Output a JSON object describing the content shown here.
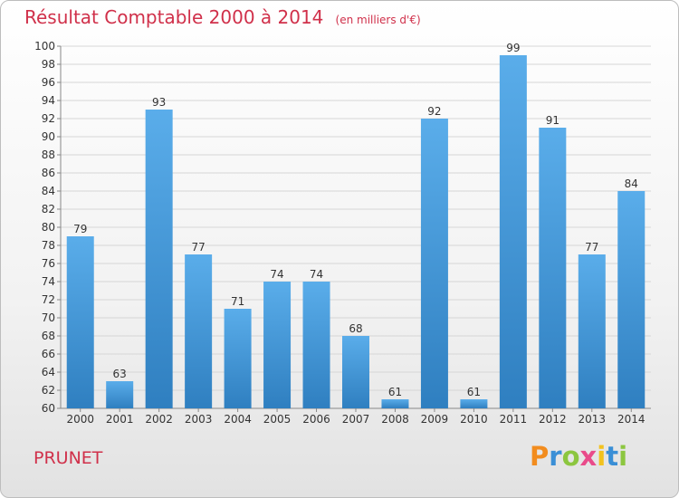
{
  "chart_data": {
    "type": "bar",
    "title": "Résultat Comptable 2000 à 2014",
    "subtitle": "(en milliers d'€)",
    "categories": [
      "2000",
      "2001",
      "2002",
      "2003",
      "2004",
      "2005",
      "2006",
      "2007",
      "2008",
      "2009",
      "2010",
      "2011",
      "2012",
      "2013",
      "2014"
    ],
    "values": [
      79,
      63,
      93,
      77,
      71,
      74,
      74,
      68,
      61,
      92,
      61,
      99,
      91,
      77,
      84
    ],
    "ylim": [
      60,
      100
    ],
    "ytick_step": 2,
    "grid": true,
    "bar_color": "#4a9fde"
  },
  "place_name": "PRUNET",
  "logo": {
    "letters": [
      {
        "ch": "P",
        "color": "#f28c1e"
      },
      {
        "ch": "r",
        "color": "#3a8fd6"
      },
      {
        "ch": "o",
        "color": "#8cc63f"
      },
      {
        "ch": "x",
        "color": "#e94b8a"
      },
      {
        "ch": "i",
        "color": "#f2c21e"
      },
      {
        "ch": "t",
        "color": "#3a8fd6"
      },
      {
        "ch": "i",
        "color": "#8cc63f"
      }
    ]
  }
}
